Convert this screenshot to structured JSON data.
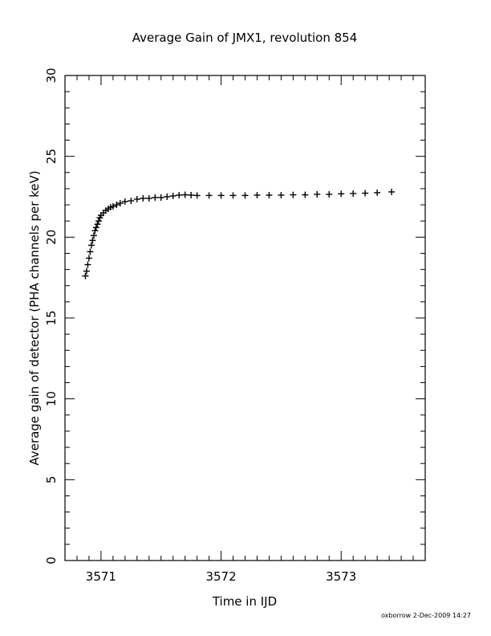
{
  "chart_data": {
    "type": "scatter",
    "title": "Average Gain of JMX1, revolution 854",
    "xlabel": "Time in IJD",
    "ylabel": "Average gain of detector (PHA channels per keV)",
    "xlim": [
      3570.7,
      3573.7
    ],
    "ylim": [
      0,
      30
    ],
    "xticks": [
      "3571",
      "3572",
      "3573"
    ],
    "yticks": [
      "0",
      "5",
      "10",
      "15",
      "20",
      "25",
      "30"
    ],
    "grid": false,
    "marker": "plus",
    "series": [
      {
        "x": [
          3570.87,
          3570.88,
          3570.89,
          3570.9,
          3570.91,
          3570.92,
          3570.93,
          3570.94,
          3570.95,
          3570.96,
          3570.97,
          3570.98,
          3570.99,
          3571.0,
          3571.02,
          3571.04,
          3571.06,
          3571.08,
          3571.1,
          3571.13,
          3571.16,
          3571.2,
          3571.25,
          3571.3,
          3571.35,
          3571.4,
          3571.45,
          3571.5,
          3571.55,
          3571.6,
          3571.65,
          3571.7,
          3571.75,
          3571.8,
          3571.9,
          3572.0,
          3572.1,
          3572.2,
          3572.3,
          3572.4,
          3572.5,
          3572.6,
          3572.7,
          3572.8,
          3572.9,
          3573.0,
          3573.1,
          3573.2,
          3573.3,
          3573.42
        ],
        "y": [
          17.6,
          17.9,
          18.3,
          18.7,
          19.1,
          19.5,
          19.8,
          20.1,
          20.4,
          20.6,
          20.8,
          21.0,
          21.2,
          21.35,
          21.5,
          21.65,
          21.75,
          21.85,
          21.9,
          22.0,
          22.1,
          22.2,
          22.25,
          22.35,
          22.4,
          22.4,
          22.45,
          22.45,
          22.5,
          22.55,
          22.6,
          22.62,
          22.6,
          22.58,
          22.58,
          22.58,
          22.58,
          22.58,
          22.6,
          22.6,
          22.6,
          22.62,
          22.62,
          22.65,
          22.65,
          22.68,
          22.7,
          22.72,
          22.75,
          22.8
        ]
      }
    ]
  },
  "footer": {
    "credit": "oxborrow  2-Dec-2009 14:27"
  }
}
